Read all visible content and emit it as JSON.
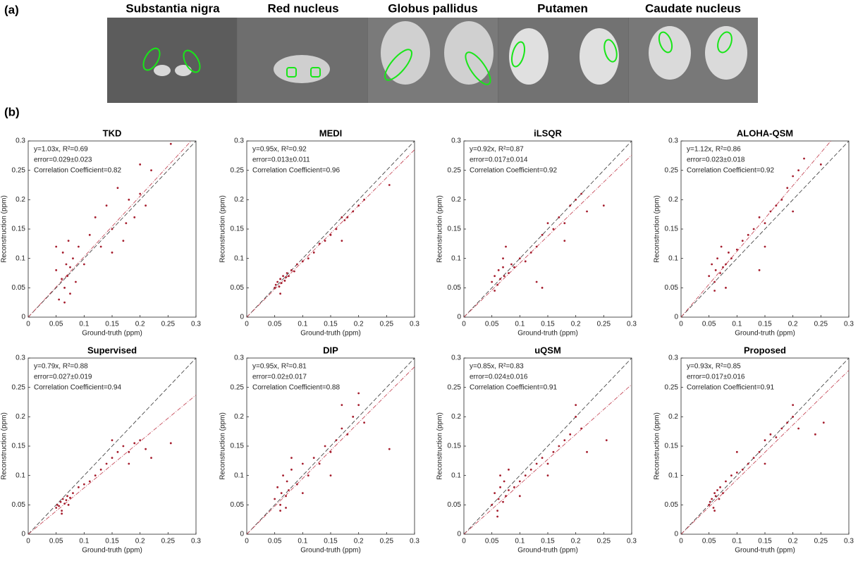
{
  "figure": {
    "panel_a": "(a)",
    "panel_b": "(b)",
    "regions": [
      "Substantia nigra",
      "Red nucleus",
      "Globus pallidus",
      "Putamen",
      "Caudate nucleus"
    ]
  },
  "chart_data": [
    {
      "type": "scatter",
      "title": "TKD",
      "xlabel": "Ground-truth (ppm)",
      "ylabel": "Reconstruction (ppm)",
      "annotations": [
        "y=1.03x, R²=0.69",
        "error=0.029±0.023",
        "Correlation Coefficient=0.82"
      ],
      "fit_slope": 1.03,
      "color": "#a51d2d",
      "fit_color": "#c0394a",
      "identity_color": "#333333",
      "xlim": [
        0,
        0.3
      ],
      "ylim": [
        0,
        0.3
      ],
      "xticks": [
        0,
        0.05,
        0.1,
        0.15,
        0.2,
        0.25,
        0.3
      ],
      "yticks": [
        0,
        0.05,
        0.1,
        0.15,
        0.2,
        0.25,
        0.3
      ],
      "x": [
        0.05,
        0.055,
        0.06,
        0.062,
        0.065,
        0.068,
        0.07,
        0.072,
        0.075,
        0.08,
        0.085,
        0.09,
        0.1,
        0.11,
        0.12,
        0.13,
        0.14,
        0.15,
        0.16,
        0.17,
        0.18,
        0.19,
        0.2,
        0.21,
        0.05,
        0.065,
        0.075,
        0.15,
        0.175,
        0.2,
        0.22,
        0.255
      ],
      "values": [
        0.08,
        0.03,
        0.065,
        0.11,
        0.05,
        0.09,
        0.07,
        0.13,
        0.04,
        0.1,
        0.06,
        0.12,
        0.09,
        0.14,
        0.17,
        0.12,
        0.19,
        0.15,
        0.22,
        0.13,
        0.2,
        0.17,
        0.26,
        0.19,
        0.12,
        0.025,
        0.085,
        0.11,
        0.16,
        0.21,
        0.25,
        0.295
      ]
    },
    {
      "type": "scatter",
      "title": "MEDI",
      "xlabel": "Ground-truth (ppm)",
      "ylabel": "Reconstruction (ppm)",
      "annotations": [
        "y=0.95x, R²=0.92",
        "error=0.013±0.011",
        "Correlation Coefficient=0.96"
      ],
      "fit_slope": 0.95,
      "color": "#a51d2d",
      "fit_color": "#c0394a",
      "identity_color": "#333333",
      "xlim": [
        0,
        0.3
      ],
      "ylim": [
        0,
        0.3
      ],
      "xticks": [
        0,
        0.05,
        0.1,
        0.15,
        0.2,
        0.25,
        0.3
      ],
      "yticks": [
        0,
        0.05,
        0.1,
        0.15,
        0.2,
        0.25,
        0.3
      ],
      "x": [
        0.05,
        0.052,
        0.055,
        0.058,
        0.06,
        0.062,
        0.065,
        0.068,
        0.07,
        0.072,
        0.075,
        0.08,
        0.085,
        0.09,
        0.1,
        0.11,
        0.12,
        0.13,
        0.14,
        0.15,
        0.16,
        0.17,
        0.175,
        0.18,
        0.19,
        0.2,
        0.21,
        0.06,
        0.17,
        0.255
      ],
      "values": [
        0.05,
        0.055,
        0.06,
        0.052,
        0.065,
        0.058,
        0.07,
        0.062,
        0.068,
        0.075,
        0.07,
        0.08,
        0.078,
        0.09,
        0.095,
        0.1,
        0.11,
        0.125,
        0.13,
        0.14,
        0.15,
        0.17,
        0.165,
        0.17,
        0.18,
        0.19,
        0.2,
        0.04,
        0.13,
        0.225
      ]
    },
    {
      "type": "scatter",
      "title": "iLSQR",
      "xlabel": "Ground-truth (ppm)",
      "ylabel": "Reconstruction (ppm)",
      "annotations": [
        "y=0.92x, R²=0.87",
        "error=0.017±0.014",
        "Correlation Coefficient=0.92"
      ],
      "fit_slope": 0.92,
      "color": "#a51d2d",
      "fit_color": "#c0394a",
      "identity_color": "#333333",
      "xlim": [
        0,
        0.3
      ],
      "ylim": [
        0,
        0.3
      ],
      "xticks": [
        0,
        0.05,
        0.1,
        0.15,
        0.2,
        0.25,
        0.3
      ],
      "yticks": [
        0,
        0.05,
        0.1,
        0.15,
        0.2,
        0.25,
        0.3
      ],
      "x": [
        0.05,
        0.055,
        0.06,
        0.062,
        0.065,
        0.07,
        0.072,
        0.075,
        0.08,
        0.085,
        0.09,
        0.1,
        0.11,
        0.12,
        0.13,
        0.14,
        0.15,
        0.16,
        0.17,
        0.18,
        0.19,
        0.2,
        0.21,
        0.055,
        0.07,
        0.13,
        0.18,
        0.22,
        0.25,
        0.14
      ],
      "values": [
        0.06,
        0.07,
        0.055,
        0.08,
        0.065,
        0.1,
        0.07,
        0.12,
        0.075,
        0.09,
        0.085,
        0.1,
        0.095,
        0.11,
        0.12,
        0.14,
        0.16,
        0.15,
        0.17,
        0.16,
        0.19,
        0.2,
        0.21,
        0.045,
        0.085,
        0.06,
        0.13,
        0.18,
        0.19,
        0.05
      ]
    },
    {
      "type": "scatter",
      "title": "ALOHA-QSM",
      "xlabel": "Ground-truth (ppm)",
      "ylabel": "Reconstruction (ppm)",
      "annotations": [
        "y=1.12x, R²=0.86",
        "error=0.023±0.018",
        "Correlation Coefficient=0.92"
      ],
      "fit_slope": 1.12,
      "color": "#a51d2d",
      "fit_color": "#c0394a",
      "identity_color": "#333333",
      "xlim": [
        0,
        0.3
      ],
      "ylim": [
        0,
        0.3
      ],
      "xticks": [
        0,
        0.05,
        0.1,
        0.15,
        0.2,
        0.25,
        0.3
      ],
      "yticks": [
        0,
        0.05,
        0.1,
        0.15,
        0.2,
        0.25,
        0.3
      ],
      "x": [
        0.05,
        0.055,
        0.06,
        0.062,
        0.065,
        0.07,
        0.072,
        0.075,
        0.08,
        0.085,
        0.09,
        0.1,
        0.11,
        0.12,
        0.13,
        0.14,
        0.15,
        0.16,
        0.17,
        0.18,
        0.19,
        0.2,
        0.21,
        0.22,
        0.06,
        0.08,
        0.15,
        0.2,
        0.25,
        0.14
      ],
      "values": [
        0.07,
        0.09,
        0.06,
        0.08,
        0.1,
        0.075,
        0.12,
        0.085,
        0.09,
        0.11,
        0.1,
        0.115,
        0.13,
        0.14,
        0.15,
        0.17,
        0.16,
        0.18,
        0.19,
        0.2,
        0.22,
        0.24,
        0.25,
        0.27,
        0.045,
        0.05,
        0.12,
        0.18,
        0.26,
        0.08
      ]
    },
    {
      "type": "scatter",
      "title": "Supervised",
      "xlabel": "Ground-truth (ppm)",
      "ylabel": "Reconstruction (ppm)",
      "annotations": [
        "y=0.79x, R²=0.88",
        "error=0.027±0.019",
        "Correlation Coefficient=0.94"
      ],
      "fit_slope": 0.79,
      "color": "#a51d2d",
      "fit_color": "#c0394a",
      "identity_color": "#333333",
      "xlim": [
        0,
        0.3
      ],
      "ylim": [
        0,
        0.3
      ],
      "xticks": [
        0,
        0.05,
        0.1,
        0.15,
        0.2,
        0.25,
        0.3
      ],
      "yticks": [
        0,
        0.05,
        0.1,
        0.15,
        0.2,
        0.25,
        0.3
      ],
      "x": [
        0.05,
        0.052,
        0.055,
        0.058,
        0.06,
        0.062,
        0.065,
        0.068,
        0.07,
        0.072,
        0.075,
        0.08,
        0.09,
        0.1,
        0.11,
        0.12,
        0.13,
        0.14,
        0.15,
        0.16,
        0.17,
        0.18,
        0.19,
        0.2,
        0.21,
        0.06,
        0.15,
        0.18,
        0.255,
        0.22
      ],
      "values": [
        0.045,
        0.05,
        0.048,
        0.055,
        0.04,
        0.06,
        0.052,
        0.058,
        0.065,
        0.05,
        0.062,
        0.07,
        0.08,
        0.085,
        0.09,
        0.1,
        0.11,
        0.12,
        0.13,
        0.14,
        0.15,
        0.14,
        0.155,
        0.16,
        0.145,
        0.035,
        0.16,
        0.12,
        0.155,
        0.13
      ]
    },
    {
      "type": "scatter",
      "title": "DIP",
      "xlabel": "Ground-truth (ppm)",
      "ylabel": "Reconstruction (ppm)",
      "annotations": [
        "y=0.95x, R²=0.81",
        "error=0.02±0.017",
        "Correlation Coefficient=0.88"
      ],
      "fit_slope": 0.95,
      "color": "#a51d2d",
      "fit_color": "#c0394a",
      "identity_color": "#333333",
      "xlim": [
        0,
        0.3
      ],
      "ylim": [
        0,
        0.3
      ],
      "xticks": [
        0,
        0.05,
        0.1,
        0.15,
        0.2,
        0.25,
        0.3
      ],
      "yticks": [
        0,
        0.05,
        0.1,
        0.15,
        0.2,
        0.25,
        0.3
      ],
      "x": [
        0.05,
        0.055,
        0.06,
        0.062,
        0.065,
        0.07,
        0.072,
        0.075,
        0.08,
        0.09,
        0.1,
        0.11,
        0.12,
        0.13,
        0.14,
        0.15,
        0.16,
        0.17,
        0.18,
        0.19,
        0.2,
        0.21,
        0.06,
        0.08,
        0.15,
        0.2,
        0.255,
        0.17,
        0.1,
        0.07
      ],
      "values": [
        0.06,
        0.08,
        0.05,
        0.07,
        0.1,
        0.065,
        0.09,
        0.075,
        0.11,
        0.085,
        0.12,
        0.1,
        0.13,
        0.12,
        0.15,
        0.14,
        0.16,
        0.18,
        0.17,
        0.2,
        0.22,
        0.19,
        0.04,
        0.13,
        0.1,
        0.24,
        0.145,
        0.22,
        0.07,
        0.045
      ]
    },
    {
      "type": "scatter",
      "title": "uQSM",
      "xlabel": "Ground-truth (ppm)",
      "ylabel": "Reconstruction (ppm)",
      "annotations": [
        "y=0.85x, R²=0.83",
        "error=0.024±0.016",
        "Correlation Coefficient=0.91"
      ],
      "fit_slope": 0.85,
      "color": "#a51d2d",
      "fit_color": "#c0394a",
      "identity_color": "#333333",
      "xlim": [
        0,
        0.3
      ],
      "ylim": [
        0,
        0.3
      ],
      "xticks": [
        0,
        0.05,
        0.1,
        0.15,
        0.2,
        0.25,
        0.3
      ],
      "yticks": [
        0,
        0.05,
        0.1,
        0.15,
        0.2,
        0.25,
        0.3
      ],
      "x": [
        0.05,
        0.055,
        0.06,
        0.062,
        0.065,
        0.07,
        0.072,
        0.075,
        0.08,
        0.09,
        0.1,
        0.11,
        0.12,
        0.13,
        0.14,
        0.15,
        0.16,
        0.17,
        0.18,
        0.19,
        0.2,
        0.21,
        0.06,
        0.08,
        0.15,
        0.2,
        0.255,
        0.22,
        0.1,
        0.065
      ],
      "values": [
        0.05,
        0.07,
        0.04,
        0.06,
        0.08,
        0.055,
        0.09,
        0.065,
        0.075,
        0.08,
        0.09,
        0.1,
        0.11,
        0.12,
        0.13,
        0.12,
        0.14,
        0.15,
        0.16,
        0.17,
        0.2,
        0.18,
        0.03,
        0.11,
        0.1,
        0.22,
        0.16,
        0.14,
        0.065,
        0.1
      ]
    },
    {
      "type": "scatter",
      "title": "Proposed",
      "xlabel": "Ground-truth (ppm)",
      "ylabel": "Reconstruction (ppm)",
      "annotations": [
        "y=0.93x, R²=0.85",
        "error=0.017±0.016",
        "Correlation Coefficient=0.91"
      ],
      "fit_slope": 0.93,
      "color": "#a51d2d",
      "fit_color": "#c0394a",
      "identity_color": "#333333",
      "xlim": [
        0,
        0.3
      ],
      "ylim": [
        0,
        0.3
      ],
      "xticks": [
        0,
        0.05,
        0.1,
        0.15,
        0.2,
        0.25,
        0.3
      ],
      "yticks": [
        0,
        0.05,
        0.1,
        0.15,
        0.2,
        0.25,
        0.3
      ],
      "x": [
        0.05,
        0.052,
        0.055,
        0.058,
        0.06,
        0.062,
        0.065,
        0.068,
        0.07,
        0.075,
        0.08,
        0.09,
        0.1,
        0.11,
        0.12,
        0.13,
        0.14,
        0.15,
        0.16,
        0.17,
        0.18,
        0.19,
        0.2,
        0.21,
        0.06,
        0.1,
        0.15,
        0.2,
        0.255,
        0.24
      ],
      "values": [
        0.05,
        0.055,
        0.06,
        0.045,
        0.07,
        0.065,
        0.075,
        0.06,
        0.08,
        0.07,
        0.09,
        0.1,
        0.105,
        0.11,
        0.12,
        0.13,
        0.14,
        0.16,
        0.17,
        0.165,
        0.18,
        0.19,
        0.2,
        0.18,
        0.04,
        0.14,
        0.12,
        0.22,
        0.19,
        0.17
      ]
    }
  ]
}
